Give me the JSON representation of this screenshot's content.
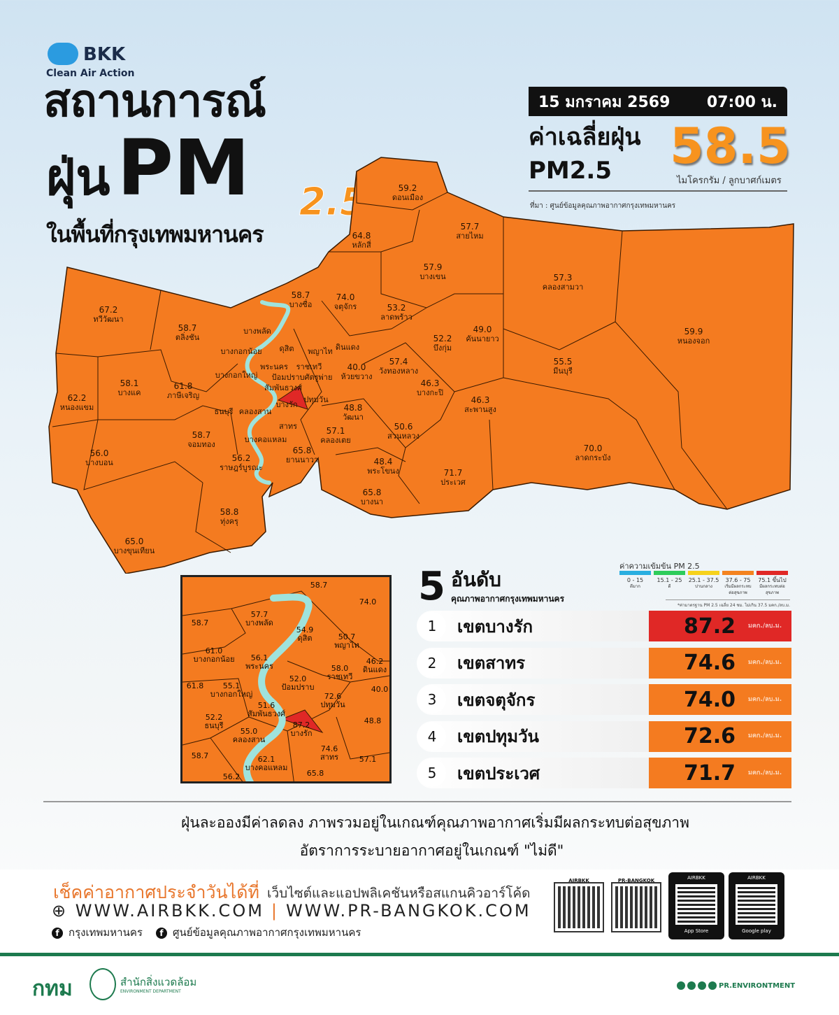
{
  "logo": {
    "name": "BKK",
    "tagline": "Clean Air Action"
  },
  "title": {
    "line1": "สถานการณ์",
    "line2_a": "ฝุ่น",
    "line2_b": "PM",
    "line2_sub": "2.5",
    "line3": "ในพื้นที่กรุงเทพมหานคร"
  },
  "header": {
    "date": "15 มกราคม 2569",
    "time": "07:00 น.",
    "avg_label1": "ค่าเฉลี่ยฝุ่น",
    "avg_label2": "PM2.5",
    "avg_value": "58.5",
    "unit": "ไมโครกรัม / ลูกบาศก์เมตร",
    "source": "ที่มา : ศูนย์ข้อมูลคุณภาพอากาศกรุงเทพมหานคร"
  },
  "colors": {
    "orange": "#f47b20",
    "red": "#e02826",
    "river": "#9fe3dc",
    "accent": "#f7931e",
    "green": "#1d7a4e"
  },
  "districts": [
    {
      "v": "59.2",
      "n": "ดอนเมือง"
    },
    {
      "v": "64.8",
      "n": "หลักสี่"
    },
    {
      "v": "57.7",
      "n": "สายไหม"
    },
    {
      "v": "57.9",
      "n": "บางเขน"
    },
    {
      "v": "57.3",
      "n": "คลองสามวา"
    },
    {
      "v": "58.7",
      "n": "บางซื่อ"
    },
    {
      "v": "74.0",
      "n": "จตุจักร"
    },
    {
      "v": "53.2",
      "n": "ลาดพร้าว"
    },
    {
      "v": "52.2",
      "n": "บึงกุ่ม"
    },
    {
      "v": "49.0",
      "n": "คันนายาว"
    },
    {
      "v": "59.9",
      "n": "หนองจอก"
    },
    {
      "v": "67.2",
      "n": "ทวีวัฒนา"
    },
    {
      "v": "58.7",
      "n": "ตลิ่งชัน"
    },
    {
      "v": "55.5",
      "n": "มีนบุรี"
    },
    {
      "v": "57.4",
      "n": "วังทองหลาง"
    },
    {
      "v": "46.3",
      "n": "บางกะปิ"
    },
    {
      "v": "40.0",
      "n": "ห้วยขวาง"
    },
    {
      "v": "58.1",
      "n": "บางแค"
    },
    {
      "v": "61.8",
      "n": "ภาษีเจริญ"
    },
    {
      "v": "62.2",
      "n": "หนองแขม"
    },
    {
      "v": "48.8",
      "n": "วัฒนา"
    },
    {
      "v": "46.3",
      "n": "สะพานสูง"
    },
    {
      "v": "50.6",
      "n": "สวนหลวง"
    },
    {
      "v": "57.1",
      "n": "คลองเตย"
    },
    {
      "v": "58.7",
      "n": "จอมทอง"
    },
    {
      "v": "65.8",
      "n": "ยานนาวา"
    },
    {
      "v": "56.2",
      "n": "ราษฎร์บูรณะ"
    },
    {
      "v": "56.0",
      "n": "บางบอน"
    },
    {
      "v": "70.0",
      "n": "ลาดกระบัง"
    },
    {
      "v": "48.4",
      "n": "พระโขนง"
    },
    {
      "v": "71.7",
      "n": "ประเวศ"
    },
    {
      "v": "65.8",
      "n": "บางนา"
    },
    {
      "v": "58.8",
      "n": "ทุ่งครุ"
    },
    {
      "v": "65.0",
      "n": "บางขุนเทียน"
    },
    {
      "v": "",
      "n": "บางพลัด"
    },
    {
      "v": "",
      "n": "บางกอกน้อย"
    },
    {
      "v": "",
      "n": "ดุสิต"
    },
    {
      "v": "",
      "n": "พญาไท"
    },
    {
      "v": "",
      "n": "ดินแดง"
    },
    {
      "v": "",
      "n": "พระนคร"
    },
    {
      "v": "",
      "n": "ราชเทวี"
    },
    {
      "v": "",
      "n": "ป้อมปราบศัตรูพ่าย"
    },
    {
      "v": "",
      "n": "สัมพันธวงศ์"
    },
    {
      "v": "",
      "n": "ปทุมวัน"
    },
    {
      "v": "",
      "n": "บางกอกใหญ่"
    },
    {
      "v": "",
      "n": "ธนบุรี"
    },
    {
      "v": "",
      "n": "คลองสาน"
    },
    {
      "v": "",
      "n": "บางรัก"
    },
    {
      "v": "",
      "n": "สาทร"
    },
    {
      "v": "",
      "n": "บางคอแหลม"
    }
  ],
  "inset": [
    {
      "v": "58.7",
      "n": ""
    },
    {
      "v": "74.0",
      "n": ""
    },
    {
      "v": "58.7",
      "n": ""
    },
    {
      "v": "57.7",
      "n": "บางพลัด"
    },
    {
      "v": "54.9",
      "n": "ดุสิต"
    },
    {
      "v": "50.7",
      "n": "พญาไท"
    },
    {
      "v": "46.2",
      "n": "ดินแดง"
    },
    {
      "v": "61.0",
      "n": "บางกอกน้อย"
    },
    {
      "v": "56.1",
      "n": "พระนคร"
    },
    {
      "v": "52.0",
      "n": "ป้อมปราบ"
    },
    {
      "v": "58.0",
      "n": "ราชเทวี"
    },
    {
      "v": "40.0",
      "n": ""
    },
    {
      "v": "61.8",
      "n": ""
    },
    {
      "v": "55.1",
      "n": "บางกอกใหญ่"
    },
    {
      "v": "51.6",
      "n": "สัมพันธวงศ์"
    },
    {
      "v": "72.6",
      "n": "ปทุมวัน"
    },
    {
      "v": "52.2",
      "n": "ธนบุรี"
    },
    {
      "v": "55.0",
      "n": "คลองสาน"
    },
    {
      "v": "87.2",
      "n": "บางรัก"
    },
    {
      "v": "48.8",
      "n": ""
    },
    {
      "v": "74.6",
      "n": "สาทร"
    },
    {
      "v": "57.1",
      "n": ""
    },
    {
      "v": "58.7",
      "n": ""
    },
    {
      "v": "62.1",
      "n": "บางคอแหลม"
    },
    {
      "v": "56.2",
      "n": ""
    },
    {
      "v": "65.8",
      "n": ""
    }
  ],
  "ranking": {
    "big": "5",
    "title": "อันดับ",
    "subtitle": "คุณภาพอากาศกรุงเทพมหานคร",
    "unit": "มคก./ลบ.ม.",
    "rows": [
      {
        "rank": "1",
        "district": "เขตบางรัก",
        "value": "87.2",
        "level": "red"
      },
      {
        "rank": "2",
        "district": "เขตสาทร",
        "value": "74.6",
        "level": "orange"
      },
      {
        "rank": "3",
        "district": "เขตจตุจักร",
        "value": "74.0",
        "level": "orange"
      },
      {
        "rank": "4",
        "district": "เขตปทุมวัน",
        "value": "72.6",
        "level": "orange"
      },
      {
        "rank": "5",
        "district": "เขตประเวศ",
        "value": "71.7",
        "level": "orange"
      }
    ]
  },
  "legend": {
    "title": "ค่าความเข้มข้น PM 2.5",
    "note": "*ค่ามาตรฐาน PM 2.5 เฉลี่ย 24 ชม. ไม่เกิน 37.5 มคก./ลบ.ม.",
    "items": [
      {
        "range": "0 - 15",
        "desc": "ดีมาก",
        "color": "#29aee0"
      },
      {
        "range": "15.1 - 25",
        "desc": "ดี",
        "color": "#2ecc5b"
      },
      {
        "range": "25.1 - 37.5",
        "desc": "ปานกลาง",
        "color": "#f6d21c"
      },
      {
        "range": "37.6 - 75",
        "desc": "เริ่มมีผลกระทบต่อสุขภาพ",
        "color": "#f4831f"
      },
      {
        "range": "75.1 ขึ้นไป",
        "desc": "มีผลกระทบต่อสุขภาพ",
        "color": "#e02826"
      }
    ]
  },
  "notes": {
    "line1": "ฝุ่นละอองมีค่าลดลง ภาพรวมอยู่ในเกณฑ์คุณภาพอากาศเริ่มมีผลกระทบต่อสุขภาพ",
    "line2": "อัตราการระบายอากาศอยู่ในเกณฑ์ \"ไม่ดี\""
  },
  "footer": {
    "check": "เช็คค่าอากาศประจำวันได้ที่",
    "check_sub": "เว็บไซต์และแอปพลิเคชันหรือสแกนคิวอาร์โค้ด",
    "web1": "WWW.AIRBKK.COM",
    "web2": "WWW.PR-BANGKOK.COM",
    "fb1": "กรุงเทพมหานคร",
    "fb2": "ศูนย์ข้อมูลคุณภาพอากาศกรุงเทพมหานคร",
    "qr1": "AIRBKK",
    "qr2": "PR-BANGKOK",
    "app1_label": "AIRBKK",
    "app1_store": "App Store",
    "app2_label": "AIRBKK",
    "app2_store": "Google play",
    "org_short": "กทม",
    "org_name": "สำนักสิ่งแวดล้อม",
    "org_en": "ENVIRONMENT DEPARTMENT",
    "social": "PR.ENVIRONTMENT"
  }
}
